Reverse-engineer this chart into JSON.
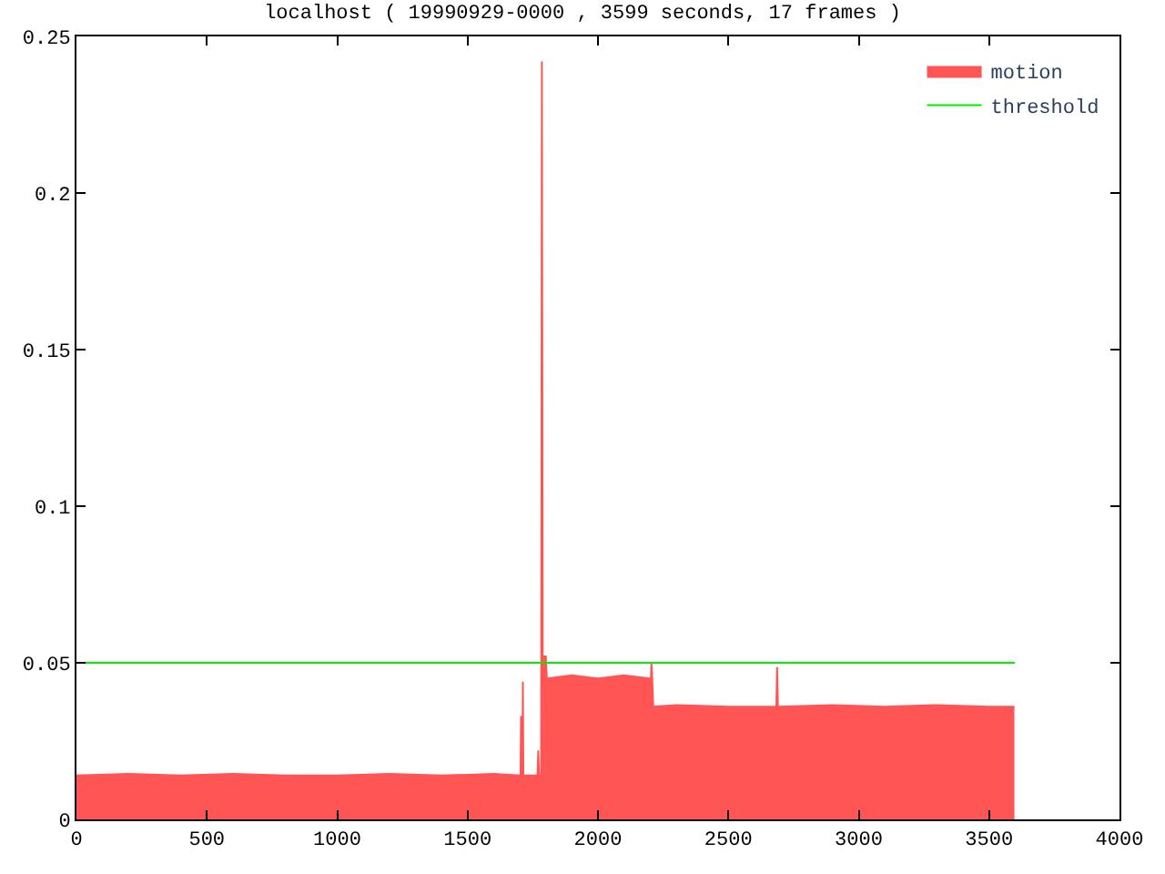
{
  "chart_data": {
    "type": "area",
    "title": "localhost ( 19990929-0000 , 3599 seconds, 17 frames )",
    "xlim": [
      0,
      4000
    ],
    "xticks": [
      0,
      500,
      1000,
      1500,
      2000,
      2500,
      3000,
      3500,
      4000
    ],
    "ylim": [
      0,
      0.25
    ],
    "yticks": [
      0,
      0.05,
      0.1,
      0.15,
      0.2,
      0.25
    ],
    "legend": "top right",
    "series": [
      {
        "name": "motion",
        "color": "#ff5555",
        "x": [
          0,
          200,
          400,
          600,
          800,
          1000,
          1200,
          1400,
          1600,
          1700,
          1703,
          1705,
          1707,
          1710,
          1712,
          1714,
          1768,
          1771,
          1774,
          1782,
          1785,
          1788,
          1800,
          1804,
          1900,
          2000,
          2100,
          2200,
          2203,
          2205,
          2208,
          2212,
          2300,
          2500,
          2684,
          2687,
          2690,
          2900,
          3100,
          3300,
          3500,
          3597
        ],
        "values": [
          0.014,
          0.0145,
          0.014,
          0.0145,
          0.014,
          0.014,
          0.0145,
          0.014,
          0.0145,
          0.014,
          0.014,
          0.033,
          0.014,
          0.014,
          0.044,
          0.014,
          0.014,
          0.022,
          0.014,
          0.014,
          0.242,
          0.052,
          0.052,
          0.045,
          0.046,
          0.045,
          0.046,
          0.045,
          0.045,
          0.05,
          0.045,
          0.036,
          0.0365,
          0.036,
          0.036,
          0.0486,
          0.036,
          0.0365,
          0.036,
          0.0365,
          0.036,
          0.036
        ]
      },
      {
        "name": "threshold",
        "color": "#00ee00",
        "type": "line",
        "x": [
          0,
          3599
        ],
        "values": [
          0.05,
          0.05
        ]
      }
    ]
  }
}
